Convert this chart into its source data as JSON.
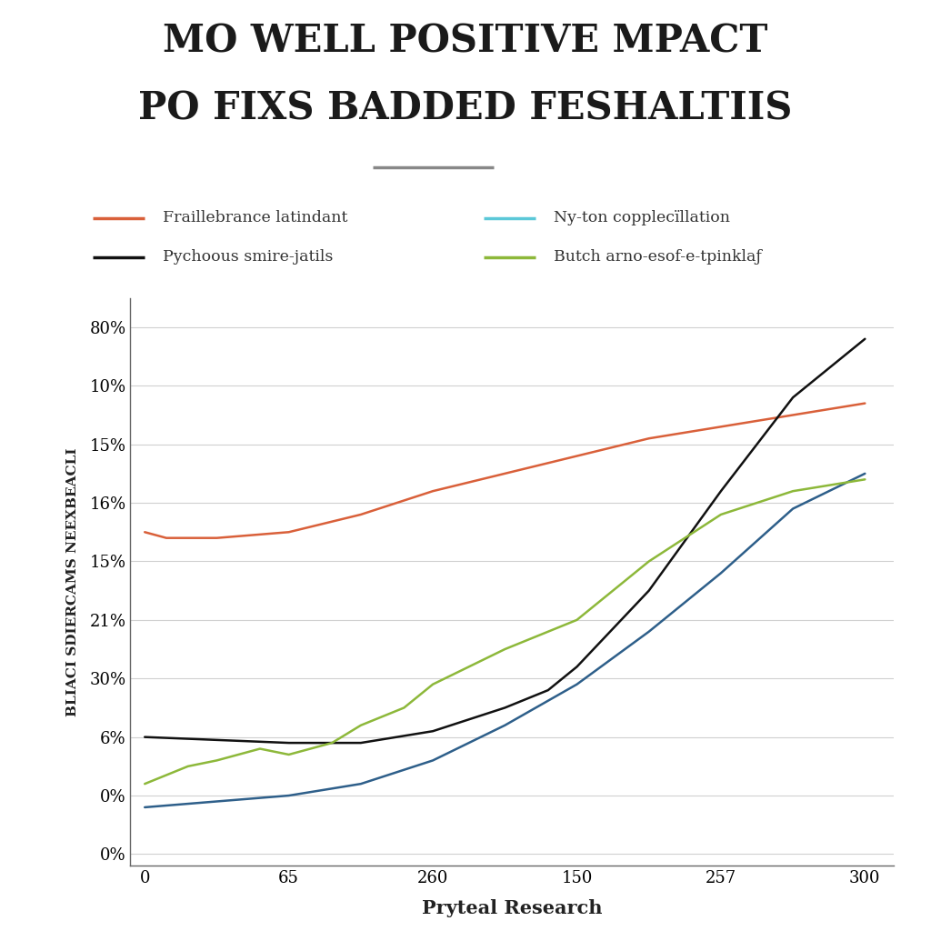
{
  "title_line1": "MO WELL POSITIVE MPACT",
  "title_line2": "PO FIXS BADDED FESHALTIIS",
  "subtitle_bar_color": "#888888",
  "xlabel": "Pryteal Research",
  "ylabel": "BLIACI SDIERCAMS NEEXBEACLI",
  "legend": [
    {
      "label": "Fraillebrance latindant",
      "color": "#D9603A"
    },
    {
      "label": "Ny-ton copplecïllation",
      "color": "#5BC8D8"
    },
    {
      "label": "Pychoous smire-jatils",
      "color": "#111111"
    },
    {
      "label": "Butch arno-esof-e-tpinklaƒ",
      "color": "#8DB83A"
    }
  ],
  "x_tick_labels": [
    "0",
    "65",
    "260",
    "150",
    "257",
    "300"
  ],
  "x_tick_positions": [
    0,
    1,
    2,
    3,
    4,
    5
  ],
  "y_tick_labels": [
    "80%",
    "10%",
    "15%",
    "16%",
    "15%",
    "21%",
    "30%",
    "6%",
    "0%",
    "0%"
  ],
  "y_tick_positions": [
    9,
    8,
    7,
    6,
    5,
    4,
    3,
    2,
    1,
    0
  ],
  "background_color": "#ffffff",
  "lines": {
    "red": {
      "color": "#D9603A",
      "x": [
        0,
        0.15,
        0.5,
        1.0,
        1.5,
        2.0,
        2.5,
        3.0,
        3.5,
        4.0,
        4.5,
        5.0
      ],
      "y": [
        5.5,
        5.4,
        5.4,
        5.5,
        5.8,
        6.2,
        6.5,
        6.8,
        7.1,
        7.3,
        7.5,
        7.7
      ]
    },
    "navy": {
      "color": "#2E5F8A",
      "x": [
        0,
        0.5,
        1.0,
        1.5,
        2.0,
        2.5,
        3.0,
        3.5,
        4.0,
        4.5,
        5.0
      ],
      "y": [
        0.8,
        0.9,
        1.0,
        1.2,
        1.6,
        2.2,
        2.9,
        3.8,
        4.8,
        5.9,
        6.5
      ]
    },
    "black": {
      "color": "#111111",
      "x": [
        0,
        0.5,
        1.0,
        1.5,
        2.0,
        2.5,
        2.8,
        3.0,
        3.5,
        4.0,
        4.5,
        5.0
      ],
      "y": [
        2.0,
        1.95,
        1.9,
        1.9,
        2.1,
        2.5,
        2.8,
        3.2,
        4.5,
        6.2,
        7.8,
        8.8
      ]
    },
    "green": {
      "color": "#8DB83A",
      "x": [
        0,
        0.3,
        0.5,
        0.8,
        1.0,
        1.3,
        1.5,
        1.8,
        2.0,
        2.5,
        2.8,
        3.0,
        3.5,
        4.0,
        4.5,
        5.0
      ],
      "y": [
        1.2,
        1.5,
        1.6,
        1.8,
        1.7,
        1.9,
        2.2,
        2.5,
        2.9,
        3.5,
        3.8,
        4.0,
        5.0,
        5.8,
        6.2,
        6.4
      ]
    }
  },
  "ylim": [
    -0.2,
    9.5
  ],
  "xlim": [
    -0.1,
    5.2
  ],
  "figsize": [
    10.24,
    10.24
  ],
  "dpi": 100
}
